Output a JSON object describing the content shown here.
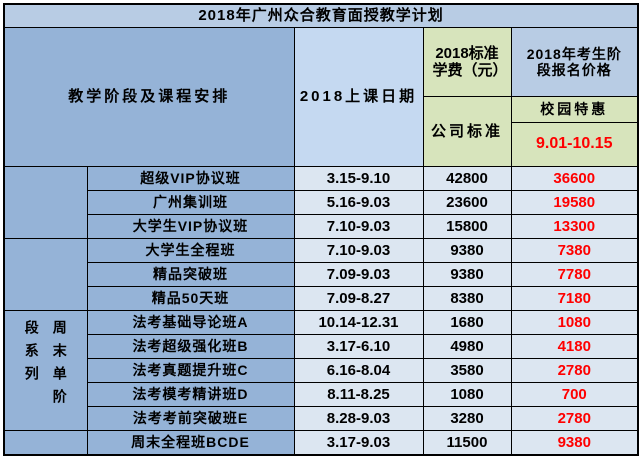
{
  "title": "2018年广州众合教育面授教学计划",
  "header": {
    "stage_course": "教学阶段及课程安排",
    "class_date": "2018上课日期",
    "standard_fee": "2018标准学费（元）",
    "company_standard": "公司标准",
    "applicant_price": "2018年考生阶段报名价格",
    "campus_special": "校园特惠",
    "special_period": "9.01-10.15"
  },
  "groups": {
    "weekend_series": "周末单阶段系列"
  },
  "rows": [
    {
      "course": "超级VIP协议班",
      "date": "3.15-9.10",
      "fee": "42800",
      "discount": "36600"
    },
    {
      "course": "广州集训班",
      "date": "5.16-9.03",
      "fee": "23600",
      "discount": "19580"
    },
    {
      "course": "大学生VIP协议班",
      "date": "7.10-9.03",
      "fee": "15800",
      "discount": "13300"
    },
    {
      "course": "大学生全程班",
      "date": "7.10-9.03",
      "fee": "9380",
      "discount": "7380"
    },
    {
      "course": "精品突破班",
      "date": "7.09-9.03",
      "fee": "9380",
      "discount": "7780"
    },
    {
      "course": "精品50天班",
      "date": "7.09-8.27",
      "fee": "8380",
      "discount": "7180"
    },
    {
      "course": "法考基础导论班A",
      "date": "10.14-12.31",
      "fee": "1680",
      "discount": "1080"
    },
    {
      "course": "法考超级强化班B",
      "date": "3.17-6.10",
      "fee": "4980",
      "discount": "4180"
    },
    {
      "course": "法考真题提升班C",
      "date": "6.16-8.04",
      "fee": "3580",
      "discount": "2780"
    },
    {
      "course": "法考模考精讲班D",
      "date": "8.11-8.25",
      "fee": "1080",
      "discount": "700"
    },
    {
      "course": "法考考前突破班E",
      "date": "8.28-9.03",
      "fee": "3280",
      "discount": "2780"
    },
    {
      "course": "周末全程班BCDE",
      "date": "3.17-9.03",
      "fee": "11500",
      "discount": "9380"
    }
  ],
  "colors": {
    "title_bg": "#b8cce4",
    "header_blue": "#95b3d7",
    "date_header_bg": "#c5d9f1",
    "green_cell": "#d7e4bc",
    "light_row": "#dce6f1",
    "highlight_red": "#ff0000",
    "border": "#000000"
  }
}
